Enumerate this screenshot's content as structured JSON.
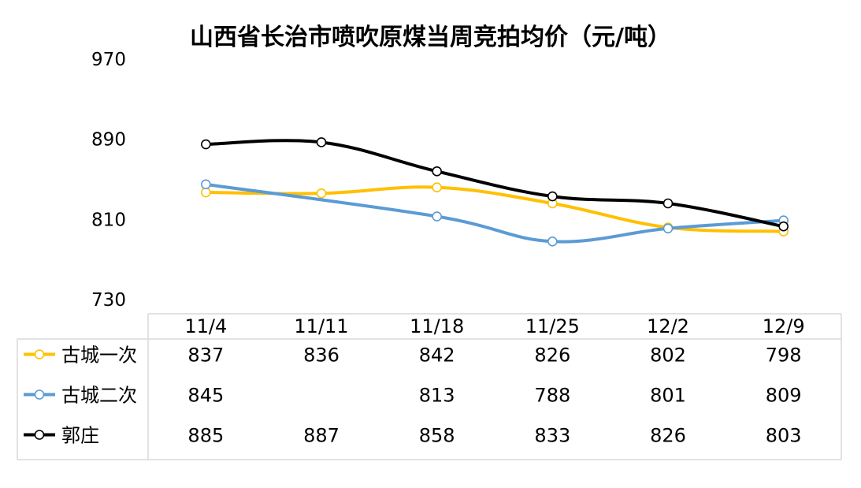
{
  "chart_data": {
    "type": "line",
    "title": "山西省长治市喷吹原煤当周竞拍均价（元/吨）",
    "categories": [
      "11/4",
      "11/11",
      "11/18",
      "11/25",
      "12/2",
      "12/9"
    ],
    "y_ticks": [
      970,
      890,
      810,
      730
    ],
    "ylim": [
      730,
      970
    ],
    "grid": false,
    "legend": "data-table",
    "series": [
      {
        "name": "古城一次",
        "color": "#FFC000",
        "values": [
          837,
          836,
          842,
          826,
          802,
          798
        ],
        "labels": [
          "837",
          "836",
          "842",
          "826",
          "802",
          "798"
        ]
      },
      {
        "name": "古城二次",
        "color": "#5B9BD5",
        "values": [
          845,
          null,
          813,
          788,
          801,
          809
        ],
        "labels": [
          "845",
          "",
          "813",
          "788",
          "801",
          "809"
        ]
      },
      {
        "name": "郭庄",
        "color": "#000000",
        "values": [
          885,
          887,
          858,
          833,
          826,
          803
        ],
        "labels": [
          "885",
          "887",
          "858",
          "833",
          "826",
          "803"
        ]
      }
    ]
  }
}
